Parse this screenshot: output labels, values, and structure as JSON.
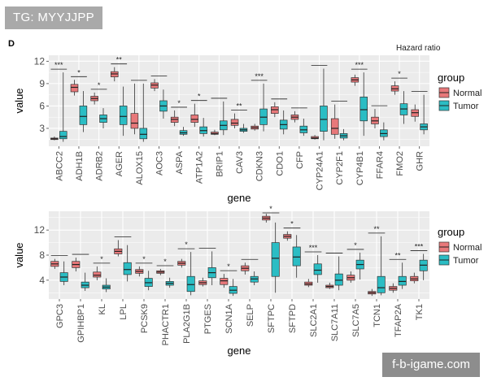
{
  "watermark": {
    "top_left": "TG: MYYJJPP",
    "bottom_right": "f-b-igame.com"
  },
  "figure": {
    "panel_label": "D",
    "header_text": "Hazard ratio"
  },
  "colors": {
    "normal": "#e8787a",
    "tumor": "#2bbdc4",
    "panel_bg": "#ebebeb",
    "grid": "#ffffff"
  },
  "chart_data": [
    {
      "type": "box",
      "title": "",
      "xlabel": "gene",
      "ylabel": "value",
      "ylim": [
        0.6,
        12.8
      ],
      "yticks": [
        3,
        6,
        9,
        12
      ],
      "legend_title": "group",
      "legend_position": "right",
      "series_names": [
        "Normal",
        "Tumor"
      ],
      "genes": [
        {
          "name": "ABCC2",
          "sig": "***",
          "normal": [
            1.4,
            1.5,
            1.6,
            1.7,
            1.9
          ],
          "tumor": [
            1.2,
            1.6,
            1.9,
            2.6,
            10.5
          ]
        },
        {
          "name": "ADH1B",
          "sig": "*",
          "normal": [
            7.4,
            7.9,
            8.5,
            8.9,
            9.5
          ],
          "tumor": [
            2.5,
            3.5,
            4.6,
            6.0,
            8.0
          ]
        },
        {
          "name": "ADRB2",
          "sig": "*",
          "normal": [
            6.2,
            6.7,
            7.0,
            7.3,
            7.8
          ],
          "tumor": [
            3.0,
            3.8,
            4.3,
            4.8,
            5.7
          ]
        },
        {
          "name": "AGER",
          "sig": "**",
          "normal": [
            9.3,
            9.9,
            10.3,
            10.6,
            11.2
          ],
          "tumor": [
            2.0,
            3.5,
            4.6,
            6.0,
            8.6
          ]
        },
        {
          "name": "ALOX15",
          "sig": "",
          "normal": [
            2.2,
            3.0,
            3.7,
            5.0,
            9.0
          ],
          "tumor": [
            1.2,
            1.6,
            2.2,
            3.0,
            9.0
          ]
        },
        {
          "name": "AOC3",
          "sig": "",
          "normal": [
            8.0,
            8.4,
            8.8,
            9.1,
            9.6
          ],
          "tumor": [
            4.3,
            5.3,
            6.0,
            6.7,
            8.2
          ]
        },
        {
          "name": "ASPA",
          "sig": "*",
          "normal": [
            3.3,
            3.8,
            4.2,
            4.5,
            5.4
          ],
          "tumor": [
            2.0,
            2.2,
            2.4,
            2.7,
            3.2
          ]
        },
        {
          "name": "ATP1A2",
          "sig": "*",
          "normal": [
            3.2,
            3.8,
            4.2,
            4.8,
            6.3
          ],
          "tumor": [
            1.9,
            2.3,
            2.7,
            3.2,
            4.4
          ]
        },
        {
          "name": "BRIP1",
          "sig": "",
          "normal": [
            2.1,
            2.2,
            2.3,
            2.5,
            2.8
          ],
          "tumor": [
            2.1,
            2.8,
            3.4,
            4.0,
            6.6
          ]
        },
        {
          "name": "CAV3",
          "sig": "**",
          "normal": [
            3.0,
            3.4,
            3.7,
            4.2,
            5.0
          ],
          "tumor": [
            2.4,
            2.6,
            2.8,
            3.0,
            3.6
          ]
        },
        {
          "name": "CDKN3",
          "sig": "***",
          "normal": [
            2.7,
            2.9,
            3.1,
            3.3,
            3.6
          ],
          "tumor": [
            2.6,
            3.5,
            4.5,
            5.6,
            9.0
          ]
        },
        {
          "name": "CDO1",
          "sig": "",
          "normal": [
            4.5,
            5.0,
            5.5,
            5.9,
            6.5
          ],
          "tumor": [
            2.2,
            2.9,
            3.5,
            4.1,
            5.4
          ]
        },
        {
          "name": "CFP",
          "sig": "",
          "normal": [
            3.8,
            4.2,
            4.5,
            4.8,
            5.3
          ],
          "tumor": [
            2.0,
            2.4,
            2.8,
            3.3,
            4.3
          ]
        },
        {
          "name": "CYP24A1",
          "sig": "",
          "normal": [
            1.5,
            1.6,
            1.7,
            1.9,
            2.1
          ],
          "tumor": [
            1.4,
            2.6,
            4.2,
            6.0,
            11.0
          ]
        },
        {
          "name": "CYP2F1",
          "sig": "",
          "normal": [
            1.6,
            2.2,
            3.0,
            4.3,
            6.2
          ],
          "tumor": [
            1.4,
            1.7,
            2.0,
            2.3,
            2.9
          ]
        },
        {
          "name": "CYP4B1",
          "sig": "***",
          "normal": [
            8.7,
            9.2,
            9.5,
            9.8,
            10.2
          ],
          "tumor": [
            2.0,
            4.0,
            5.5,
            7.2,
            10.5
          ]
        },
        {
          "name": "FFAR4",
          "sig": "",
          "normal": [
            3.0,
            3.6,
            4.0,
            4.5,
            5.6
          ],
          "tumor": [
            1.4,
            1.9,
            2.3,
            2.8,
            3.8
          ]
        },
        {
          "name": "FMO2",
          "sig": "*",
          "normal": [
            7.5,
            8.0,
            8.3,
            8.7,
            9.3
          ],
          "tumor": [
            3.6,
            4.8,
            5.6,
            6.3,
            8.0
          ]
        },
        {
          "name": "GHR",
          "sig": "",
          "normal": [
            3.9,
            4.6,
            5.1,
            5.5,
            6.2
          ],
          "tumor": [
            2.2,
            2.8,
            3.2,
            3.6,
            7.5
          ]
        }
      ]
    },
    {
      "type": "box",
      "title": "",
      "xlabel": "gene",
      "ylabel": "value",
      "ylim": [
        1.0,
        15.0
      ],
      "yticks": [
        4,
        8,
        12
      ],
      "legend_title": "group",
      "legend_position": "right",
      "series_names": [
        "Normal",
        "Tumor"
      ],
      "genes": [
        {
          "name": "GPC3",
          "sig": "",
          "normal": [
            5.8,
            6.2,
            6.6,
            7.0,
            7.4
          ],
          "tumor": [
            3.2,
            3.8,
            4.5,
            5.2,
            7.0
          ]
        },
        {
          "name": "GPIHBP1",
          "sig": "",
          "normal": [
            5.4,
            6.0,
            6.5,
            7.0,
            7.6
          ],
          "tumor": [
            2.3,
            2.8,
            3.2,
            3.7,
            5.2
          ]
        },
        {
          "name": "KL",
          "sig": "*",
          "normal": [
            4.0,
            4.5,
            4.8,
            5.3,
            6.2
          ],
          "tumor": [
            2.1,
            2.6,
            2.9,
            3.2,
            4.3
          ]
        },
        {
          "name": "LPL",
          "sig": "",
          "normal": [
            7.8,
            8.2,
            8.6,
            9.0,
            10.4
          ],
          "tumor": [
            3.8,
            4.9,
            5.7,
            6.8,
            9.6
          ]
        },
        {
          "name": "PCSK9",
          "sig": "*",
          "normal": [
            4.6,
            5.1,
            5.4,
            5.7,
            6.2
          ],
          "tumor": [
            2.4,
            3.0,
            3.6,
            4.3,
            5.5
          ]
        },
        {
          "name": "PHACTR1",
          "sig": "*",
          "normal": [
            4.8,
            5.1,
            5.3,
            5.5,
            5.8
          ],
          "tumor": [
            2.8,
            3.2,
            3.5,
            3.8,
            4.4
          ]
        },
        {
          "name": "PLA2G1B",
          "sig": "*",
          "normal": [
            6.0,
            6.4,
            6.7,
            7.0,
            7.4
          ],
          "tumor": [
            1.6,
            2.2,
            3.3,
            4.6,
            8.5
          ]
        },
        {
          "name": "PTGES",
          "sig": "",
          "normal": [
            3.0,
            3.3,
            3.6,
            3.9,
            4.4
          ],
          "tumor": [
            3.2,
            4.4,
            5.2,
            6.0,
            8.6
          ]
        },
        {
          "name": "SCN1A",
          "sig": "*",
          "normal": [
            2.8,
            3.3,
            3.9,
            4.3,
            5.0
          ],
          "tumor": [
            1.5,
            1.9,
            2.4,
            3.0,
            4.2
          ]
        },
        {
          "name": "SELP",
          "sig": "",
          "normal": [
            4.9,
            5.5,
            5.9,
            6.3,
            6.8
          ],
          "tumor": [
            3.2,
            3.7,
            4.2,
            4.6,
            5.4
          ]
        },
        {
          "name": "SFTPC",
          "sig": "*",
          "normal": [
            13.2,
            13.6,
            13.9,
            14.2,
            14.6
          ],
          "tumor": [
            2.0,
            4.6,
            7.5,
            10.0,
            13.2
          ]
        },
        {
          "name": "SFTPD",
          "sig": "*",
          "normal": [
            10.3,
            10.7,
            11.0,
            11.3,
            11.8
          ],
          "tumor": [
            4.4,
            6.3,
            7.7,
            9.3,
            11.2
          ]
        },
        {
          "name": "SLC2A1",
          "sig": "***",
          "normal": [
            2.9,
            3.2,
            3.4,
            3.7,
            4.2
          ],
          "tumor": [
            3.6,
            4.9,
            5.6,
            6.6,
            8.0
          ]
        },
        {
          "name": "SLC7A11",
          "sig": "",
          "normal": [
            2.6,
            2.8,
            3.0,
            3.2,
            3.6
          ],
          "tumor": [
            2.4,
            3.2,
            4.0,
            5.0,
            7.8
          ]
        },
        {
          "name": "SLC7A5",
          "sig": "*",
          "normal": [
            3.6,
            4.0,
            4.4,
            4.8,
            5.4
          ],
          "tumor": [
            4.1,
            5.8,
            6.5,
            7.2,
            8.4
          ]
        },
        {
          "name": "TCN1",
          "sig": "**",
          "normal": [
            1.5,
            1.8,
            2.0,
            2.2,
            2.6
          ],
          "tumor": [
            1.6,
            2.0,
            2.8,
            4.6,
            11.0
          ]
        },
        {
          "name": "TFAP2A",
          "sig": "**",
          "normal": [
            2.0,
            2.4,
            2.7,
            3.0,
            3.5
          ],
          "tumor": [
            2.6,
            3.2,
            3.8,
            4.6,
            6.8
          ]
        },
        {
          "name": "TK1",
          "sig": "***",
          "normal": [
            3.5,
            3.9,
            4.2,
            4.6,
            5.2
          ],
          "tumor": [
            4.0,
            5.5,
            6.4,
            7.2,
            8.2
          ]
        }
      ]
    }
  ]
}
